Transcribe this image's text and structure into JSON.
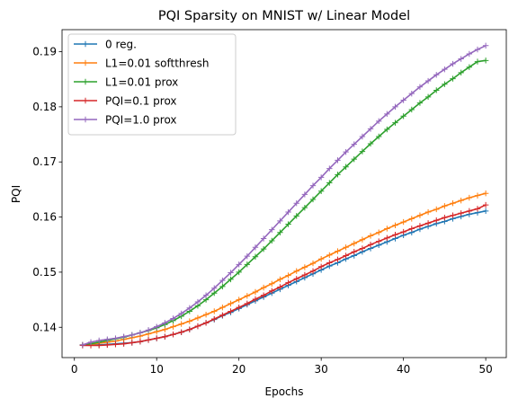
{
  "chart_data": {
    "type": "line",
    "title": "PQI Sparsity on MNIST w/ Linear Model",
    "xlabel": "Epochs",
    "ylabel": "PQI",
    "xlim": [
      -1.5,
      52.5
    ],
    "ylim": [
      0.1345,
      0.194
    ],
    "xticks": [
      0,
      10,
      20,
      30,
      40,
      50
    ],
    "yticks": [
      0.14,
      0.15,
      0.16,
      0.17,
      0.18,
      0.19
    ],
    "ytick_labels": [
      "0.14",
      "0.15",
      "0.16",
      "0.17",
      "0.18",
      "0.19"
    ],
    "grid": false,
    "legend_position": "top-left",
    "marker": "+",
    "x": [
      1,
      2,
      3,
      4,
      5,
      6,
      7,
      8,
      9,
      10,
      11,
      12,
      13,
      14,
      15,
      16,
      17,
      18,
      19,
      20,
      21,
      22,
      23,
      24,
      25,
      26,
      27,
      28,
      29,
      30,
      31,
      32,
      33,
      34,
      35,
      36,
      37,
      38,
      39,
      40,
      41,
      42,
      43,
      44,
      45,
      46,
      47,
      48,
      49,
      50
    ],
    "series": [
      {
        "name": "0 reg.",
        "color": "#1f77b4",
        "values": [
          0.1368,
          0.1368,
          0.1368,
          0.1369,
          0.137,
          0.1371,
          0.1372,
          0.1374,
          0.1377,
          0.138,
          0.1383,
          0.1387,
          0.1391,
          0.1396,
          0.1402,
          0.1408,
          0.1414,
          0.1421,
          0.1427,
          0.1434,
          0.1441,
          0.1448,
          0.1455,
          0.1462,
          0.1469,
          0.1476,
          0.1483,
          0.149,
          0.1497,
          0.1504,
          0.1511,
          0.1517,
          0.1524,
          0.153,
          0.1537,
          0.1543,
          0.1549,
          0.1555,
          0.1561,
          0.1567,
          0.1572,
          0.1578,
          0.1583,
          0.1588,
          0.1592,
          0.1597,
          0.1601,
          0.1605,
          0.1608,
          0.1611
        ]
      },
      {
        "name": "L1=0.01 softthresh",
        "color": "#ff7f0e",
        "values": [
          0.1368,
          0.1369,
          0.1371,
          0.1373,
          0.1375,
          0.1378,
          0.1381,
          0.1384,
          0.1388,
          0.1392,
          0.1396,
          0.1401,
          0.1406,
          0.1411,
          0.1417,
          0.1423,
          0.1429,
          0.1436,
          0.1443,
          0.145,
          0.1457,
          0.1464,
          0.1472,
          0.1479,
          0.1487,
          0.1494,
          0.1502,
          0.1509,
          0.1516,
          0.1524,
          0.1531,
          0.1538,
          0.1545,
          0.1552,
          0.1559,
          0.1566,
          0.1572,
          0.1579,
          0.1585,
          0.1591,
          0.1597,
          0.1603,
          0.1609,
          0.1614,
          0.162,
          0.1625,
          0.163,
          0.1635,
          0.1639,
          0.1643
        ]
      },
      {
        "name": "L1=0.01 prox",
        "color": "#2ca02c",
        "values": [
          0.1368,
          0.137,
          0.1373,
          0.1376,
          0.1379,
          0.1382,
          0.1386,
          0.139,
          0.1394,
          0.1399,
          0.1405,
          0.1412,
          0.142,
          0.1429,
          0.1439,
          0.145,
          0.1462,
          0.1474,
          0.1487,
          0.15,
          0.1514,
          0.1528,
          0.1542,
          0.1557,
          0.1572,
          0.1587,
          0.1602,
          0.1617,
          0.1632,
          0.1647,
          0.1662,
          0.1677,
          0.1691,
          0.1705,
          0.1719,
          0.1733,
          0.1746,
          0.1759,
          0.1771,
          0.1783,
          0.1795,
          0.1807,
          0.1818,
          0.183,
          0.1841,
          0.1851,
          0.1862,
          0.1872,
          0.1882,
          0.1884
        ]
      },
      {
        "name": "PQI=0.1 prox",
        "color": "#d62728",
        "values": [
          0.1367,
          0.1367,
          0.1367,
          0.1368,
          0.1369,
          0.137,
          0.1372,
          0.1374,
          0.1377,
          0.138,
          0.1383,
          0.1387,
          0.1391,
          0.1396,
          0.1402,
          0.1408,
          0.1415,
          0.1422,
          0.1429,
          0.1436,
          0.1443,
          0.1451,
          0.1458,
          0.1466,
          0.1473,
          0.1481,
          0.1488,
          0.1495,
          0.1502,
          0.151,
          0.1517,
          0.1523,
          0.153,
          0.1537,
          0.1543,
          0.155,
          0.1556,
          0.1562,
          0.1568,
          0.1573,
          0.1579,
          0.1584,
          0.1589,
          0.1594,
          0.1599,
          0.1603,
          0.1607,
          0.1611,
          0.1615,
          0.1622
        ]
      },
      {
        "name": "PQI=1.0 prox",
        "color": "#9467bd",
        "values": [
          0.1368,
          0.1373,
          0.1376,
          0.1378,
          0.138,
          0.1383,
          0.1386,
          0.139,
          0.1395,
          0.1401,
          0.1408,
          0.1416,
          0.1425,
          0.1435,
          0.1446,
          0.1458,
          0.1471,
          0.1485,
          0.1499,
          0.1514,
          0.1529,
          0.1545,
          0.1561,
          0.1577,
          0.1593,
          0.1609,
          0.1625,
          0.1641,
          0.1657,
          0.1672,
          0.1688,
          0.1703,
          0.1718,
          0.1732,
          0.1746,
          0.176,
          0.1774,
          0.1787,
          0.18,
          0.1812,
          0.1824,
          0.1836,
          0.1847,
          0.1858,
          0.1868,
          0.1878,
          0.1887,
          0.1896,
          0.1904,
          0.1911
        ]
      }
    ]
  }
}
